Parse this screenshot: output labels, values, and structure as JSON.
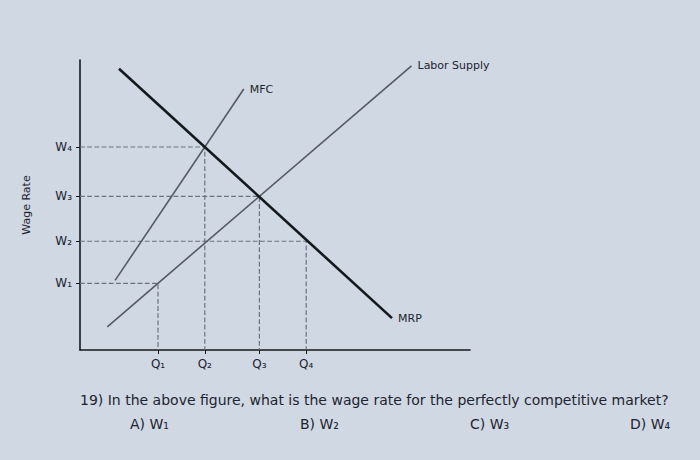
{
  "chart_data": {
    "type": "line",
    "y_label": "Wage Rate",
    "xlim": [
      0,
      100
    ],
    "ylim": [
      0,
      100
    ],
    "xticks": [
      {
        "value": 20,
        "label": "Q₁"
      },
      {
        "value": 32,
        "label": "Q₂"
      },
      {
        "value": 46,
        "label": "Q₃"
      },
      {
        "value": 58,
        "label": "Q₄"
      }
    ],
    "yticks": [
      {
        "value": 23,
        "label": "W₁"
      },
      {
        "value": 37.5,
        "label": "W₂"
      },
      {
        "value": 53,
        "label": "W₃"
      },
      {
        "value": 70,
        "label": "W₄"
      }
    ],
    "series": [
      {
        "name": "MFC",
        "color": "#555a63",
        "x": [
          9,
          42
        ],
        "values": [
          24,
          90
        ]
      },
      {
        "name": "Labor Supply",
        "color": "#555a63",
        "x": [
          7,
          85
        ],
        "values": [
          8,
          98
        ]
      },
      {
        "name": "MRP",
        "color": "#15181d",
        "x": [
          10,
          80
        ],
        "values": [
          97,
          11
        ]
      }
    ],
    "guides": {
      "x": [
        20,
        32,
        46,
        58
      ],
      "y": [
        23,
        70,
        53,
        37.5
      ],
      "line_style": "dashed",
      "color": "#6b7280"
    },
    "grid": false
  },
  "question": {
    "text": "19) In the above figure, what is the wage rate for the perfectly competitive market?",
    "options": [
      "A) W₁",
      "B) W₂",
      "C) W₃",
      "D) W₄"
    ]
  }
}
